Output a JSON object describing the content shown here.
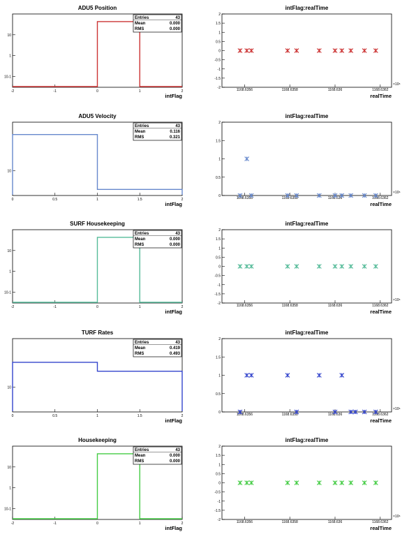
{
  "chart_data": [
    {
      "type": "histogram",
      "title": "ADU5 Position",
      "xlabel": "intFlag",
      "color": "#cc3333",
      "xlim": [
        -2,
        2
      ],
      "log_y": true,
      "bin_edges": [
        0,
        1
      ],
      "bin_contents": [
        43
      ],
      "xticks": [
        "-2",
        "-1",
        "0",
        "1",
        "2"
      ],
      "yticks": [
        {
          "value": 10,
          "label": "10"
        },
        {
          "value": 1,
          "label": "1"
        },
        {
          "value": 0.1,
          "label": "10-1"
        }
      ],
      "stats": {
        "entries_label": "Entries",
        "entries": "43",
        "mean_label": "Mean",
        "mean": "0.000",
        "rms_label": "RMS",
        "rms": "0.000"
      }
    },
    {
      "type": "scatter",
      "title": "intFlag:realTime",
      "xlabel": "realTime",
      "color": "#cc3333",
      "xlim": [
        1168.6355,
        1168.63625
      ],
      "ylim": [
        -2,
        2
      ],
      "exponent_label": "×10⁶",
      "xticks": [
        "1168.6356",
        "1168.6358",
        "1168.636",
        "1168.6362"
      ],
      "yticks": [
        "2",
        "1.5",
        "1",
        "0.5",
        "0",
        "-0.5",
        "-1",
        "-1.5",
        "-2"
      ],
      "points": [
        [
          1168.63558,
          0
        ],
        [
          1168.63561,
          0
        ],
        [
          1168.63563,
          0
        ],
        [
          1168.63579,
          0
        ],
        [
          1168.63583,
          0
        ],
        [
          1168.63593,
          0
        ],
        [
          1168.636,
          0
        ],
        [
          1168.63603,
          0
        ],
        [
          1168.63607,
          0
        ],
        [
          1168.63613,
          0
        ],
        [
          1168.63618,
          0
        ]
      ]
    },
    {
      "type": "histogram",
      "title": "ADU5 Velocity",
      "xlabel": "intFlag",
      "color": "#6688cc",
      "xlim": [
        0,
        2
      ],
      "log_y": true,
      "bin_edges": [
        0,
        1,
        2
      ],
      "bin_contents": [
        38,
        5
      ],
      "xticks": [
        "0",
        "0.5",
        "1",
        "1.5",
        "2"
      ],
      "yticks": [
        {
          "value": 10,
          "label": "10"
        }
      ],
      "stats": {
        "entries_label": "Entries",
        "entries": "43",
        "mean_label": "Mean",
        "mean": "0.116",
        "rms_label": "RMS",
        "rms": "0.321"
      }
    },
    {
      "type": "scatter",
      "title": "intFlag:realTime",
      "xlabel": "realTime",
      "color": "#6688cc",
      "xlim": [
        1168.6355,
        1168.63625
      ],
      "ylim": [
        0,
        2
      ],
      "exponent_label": "×10⁶",
      "xticks": [
        "1168.6356",
        "1168.6358",
        "1168.636",
        "1168.6362"
      ],
      "yticks": [
        "2",
        "1.5",
        "1",
        "0.5",
        "0"
      ],
      "points": [
        [
          1168.63558,
          0
        ],
        [
          1168.63561,
          1
        ],
        [
          1168.63563,
          0
        ],
        [
          1168.63579,
          0
        ],
        [
          1168.63583,
          0
        ],
        [
          1168.63593,
          0
        ],
        [
          1168.636,
          0
        ],
        [
          1168.63603,
          0
        ],
        [
          1168.63607,
          0
        ],
        [
          1168.63613,
          0
        ],
        [
          1168.63618,
          0
        ]
      ]
    },
    {
      "type": "histogram",
      "title": "SURF Housekeeping",
      "xlabel": "intFlag",
      "color": "#55bb99",
      "xlim": [
        -2,
        2
      ],
      "log_y": true,
      "bin_edges": [
        0,
        1
      ],
      "bin_contents": [
        43
      ],
      "xticks": [
        "-2",
        "-1",
        "0",
        "1",
        "2"
      ],
      "yticks": [
        {
          "value": 10,
          "label": "10"
        },
        {
          "value": 1,
          "label": "1"
        },
        {
          "value": 0.1,
          "label": "10-1"
        }
      ],
      "stats": {
        "entries_label": "Entries",
        "entries": "43",
        "mean_label": "Mean",
        "mean": "0.000",
        "rms_label": "RMS",
        "rms": "0.000"
      }
    },
    {
      "type": "scatter",
      "title": "intFlag:realTime",
      "xlabel": "realTime",
      "color": "#55bb99",
      "xlim": [
        1168.6355,
        1168.63625
      ],
      "ylim": [
        -2,
        2
      ],
      "exponent_label": "×10⁶",
      "xticks": [
        "1168.6356",
        "1168.6358",
        "1168.636",
        "1168.6362"
      ],
      "yticks": [
        "2",
        "1.5",
        "1",
        "0.5",
        "0",
        "-0.5",
        "-1",
        "-1.5",
        "-2"
      ],
      "points": [
        [
          1168.63558,
          0
        ],
        [
          1168.63561,
          0
        ],
        [
          1168.63563,
          0
        ],
        [
          1168.63579,
          0
        ],
        [
          1168.63583,
          0
        ],
        [
          1168.63593,
          0
        ],
        [
          1168.636,
          0
        ],
        [
          1168.63603,
          0
        ],
        [
          1168.63607,
          0
        ],
        [
          1168.63613,
          0
        ],
        [
          1168.63618,
          0
        ]
      ]
    },
    {
      "type": "histogram",
      "title": "TURF Rates",
      "xlabel": "intFlag",
      "color": "#3344cc",
      "xlim": [
        0,
        2
      ],
      "log_y": true,
      "bin_edges": [
        0,
        1,
        2
      ],
      "bin_contents": [
        25,
        18
      ],
      "xticks": [
        "0",
        "0.5",
        "1",
        "1.5",
        "2"
      ],
      "yticks": [
        {
          "value": 10,
          "label": "10"
        }
      ],
      "stats": {
        "entries_label": "Entries",
        "entries": "43",
        "mean_label": "Mean",
        "mean": "0.419",
        "rms_label": "RMS",
        "rms": "0.493"
      }
    },
    {
      "type": "scatter",
      "title": "intFlag:realTime",
      "xlabel": "realTime",
      "color": "#3344cc",
      "xlim": [
        1168.6355,
        1168.63625
      ],
      "ylim": [
        0,
        2
      ],
      "exponent_label": "×10⁶",
      "xticks": [
        "1168.6356",
        "1168.6358",
        "1168.636",
        "1168.6362"
      ],
      "yticks": [
        "2",
        "1.5",
        "1",
        "0.5",
        "0"
      ],
      "points": [
        [
          1168.63558,
          0
        ],
        [
          1168.63561,
          1
        ],
        [
          1168.63563,
          1
        ],
        [
          1168.63579,
          1
        ],
        [
          1168.63583,
          0
        ],
        [
          1168.63593,
          1
        ],
        [
          1168.636,
          0
        ],
        [
          1168.63603,
          1
        ],
        [
          1168.63607,
          0
        ],
        [
          1168.63609,
          0
        ],
        [
          1168.63613,
          0
        ],
        [
          1168.63618,
          0
        ]
      ]
    },
    {
      "type": "histogram",
      "title": "Housekeeping",
      "xlabel": "intFlag",
      "color": "#44cc44",
      "xlim": [
        -2,
        2
      ],
      "log_y": true,
      "bin_edges": [
        0,
        1
      ],
      "bin_contents": [
        43
      ],
      "xticks": [
        "-2",
        "-1",
        "0",
        "1",
        "2"
      ],
      "yticks": [
        {
          "value": 10,
          "label": "10"
        },
        {
          "value": 1,
          "label": "1"
        },
        {
          "value": 0.1,
          "label": "10-1"
        }
      ],
      "stats": {
        "entries_label": "Entries",
        "entries": "43",
        "mean_label": "Mean",
        "mean": "0.000",
        "rms_label": "RMS",
        "rms": "0.000"
      }
    },
    {
      "type": "scatter",
      "title": "intFlag:realTime",
      "xlabel": "realTime",
      "color": "#44cc44",
      "xlim": [
        1168.6355,
        1168.63625
      ],
      "ylim": [
        -2,
        2
      ],
      "exponent_label": "×10⁶",
      "xticks": [
        "1168.6356",
        "1168.6358",
        "1168.636",
        "1168.6362"
      ],
      "yticks": [
        "2",
        "1.5",
        "1",
        "0.5",
        "0",
        "-0.5",
        "-1",
        "-1.5",
        "-2"
      ],
      "points": [
        [
          1168.63558,
          0
        ],
        [
          1168.63561,
          0
        ],
        [
          1168.63563,
          0
        ],
        [
          1168.63579,
          0
        ],
        [
          1168.63583,
          0
        ],
        [
          1168.63593,
          0
        ],
        [
          1168.636,
          0
        ],
        [
          1168.63603,
          0
        ],
        [
          1168.63607,
          0
        ],
        [
          1168.63613,
          0
        ],
        [
          1168.63618,
          0
        ]
      ]
    }
  ]
}
